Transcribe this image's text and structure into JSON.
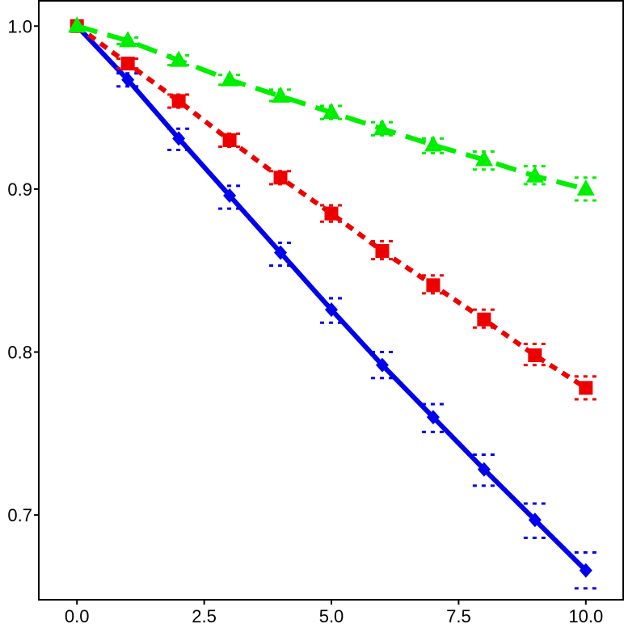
{
  "chart_data": {
    "type": "line",
    "title": "",
    "xlabel": "",
    "ylabel": "",
    "xlim": [
      -0.75,
      10.75
    ],
    "ylim": [
      0.648,
      1.016
    ],
    "x_ticks": [
      0.0,
      2.5,
      5.0,
      7.5,
      10.0
    ],
    "x_tick_labels": [
      "0.0",
      "2.5",
      "5.0",
      "7.5",
      "10.0"
    ],
    "y_ticks": [
      0.7,
      0.8,
      0.9,
      1.0
    ],
    "y_tick_labels": [
      "0.7",
      "0.8",
      "0.9",
      "1.0"
    ],
    "grid": false,
    "x": [
      0,
      1,
      2,
      3,
      4,
      5,
      6,
      7,
      8,
      9,
      10
    ],
    "series": [
      {
        "color": "#0000ee",
        "line_style": "solid",
        "marker": "diamond",
        "values": [
          1.0,
          0.967,
          0.931,
          0.896,
          0.861,
          0.826,
          0.792,
          0.76,
          0.728,
          0.697,
          0.666
        ],
        "lower": [
          1.0,
          0.963,
          0.924,
          0.888,
          0.853,
          0.818,
          0.784,
          0.751,
          0.718,
          0.686,
          0.655
        ],
        "upper": [
          1.0,
          0.971,
          0.937,
          0.902,
          0.867,
          0.833,
          0.8,
          0.768,
          0.737,
          0.707,
          0.677
        ]
      },
      {
        "color": "#ee0000",
        "line_style": "dotted",
        "marker": "square",
        "values": [
          1.0,
          0.977,
          0.954,
          0.93,
          0.907,
          0.885,
          0.862,
          0.841,
          0.82,
          0.798,
          0.778
        ],
        "lower": [
          1.0,
          0.974,
          0.95,
          0.926,
          0.903,
          0.88,
          0.857,
          0.836,
          0.815,
          0.792,
          0.771
        ],
        "upper": [
          1.0,
          0.98,
          0.958,
          0.934,
          0.911,
          0.89,
          0.868,
          0.847,
          0.826,
          0.805,
          0.785
        ]
      },
      {
        "color": "#00ee00",
        "line_style": "dashed",
        "marker": "triangle",
        "values": [
          1.0,
          0.991,
          0.979,
          0.967,
          0.957,
          0.947,
          0.937,
          0.927,
          0.918,
          0.908,
          0.9
        ],
        "lower": [
          1.0,
          0.989,
          0.976,
          0.964,
          0.954,
          0.943,
          0.933,
          0.922,
          0.912,
          0.903,
          0.893
        ],
        "upper": [
          1.0,
          0.993,
          0.982,
          0.97,
          0.961,
          0.951,
          0.941,
          0.931,
          0.923,
          0.914,
          0.907
        ]
      }
    ]
  }
}
